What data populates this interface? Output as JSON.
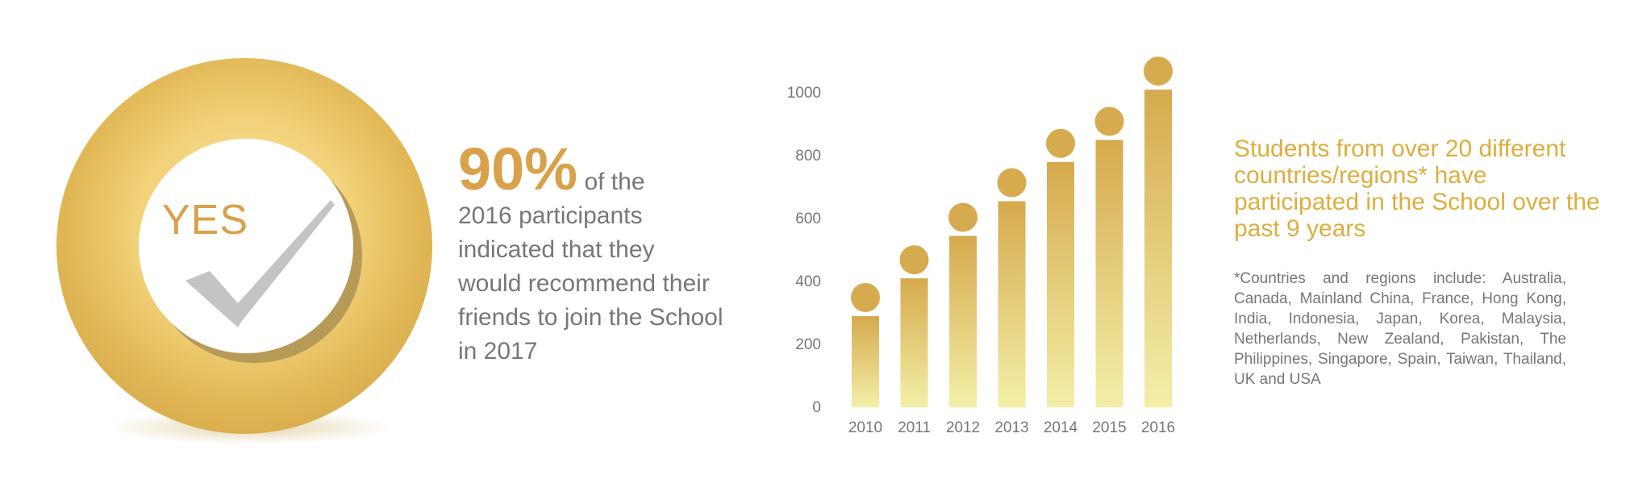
{
  "badge": {
    "label": "YES"
  },
  "stat": {
    "percent": "90%",
    "suffix": "of the",
    "body": "2016 participants indicated that they would recommend their friends to join the School in 2017"
  },
  "countries": {
    "title": "Students from over 20 different countries/regions* have participated in the School over the past 9 years",
    "note": "*Countries and regions include: Australia, Canada, Mainland China, France, Hong Kong, India, Indonesia, Japan, Korea, Malaysia, Netherlands, New Zealand, Pakistan, The Philippines, Singapore, Spain, Taiwan, Thailand, UK and USA"
  },
  "colors": {
    "gold": "#d8a14a",
    "bar_top": "#d6aa4e",
    "bar_bottom": "#f3efa8",
    "text_gray": "#777777"
  },
  "chart_data": {
    "type": "bar",
    "categories": [
      "2010",
      "2011",
      "2012",
      "2013",
      "2014",
      "2015",
      "2016"
    ],
    "values": [
      290,
      410,
      545,
      655,
      780,
      850,
      1010
    ],
    "yticks": [
      0,
      200,
      400,
      600,
      800,
      1000
    ],
    "ylim": [
      0,
      1000
    ],
    "grid": false,
    "marker_dots": true
  }
}
